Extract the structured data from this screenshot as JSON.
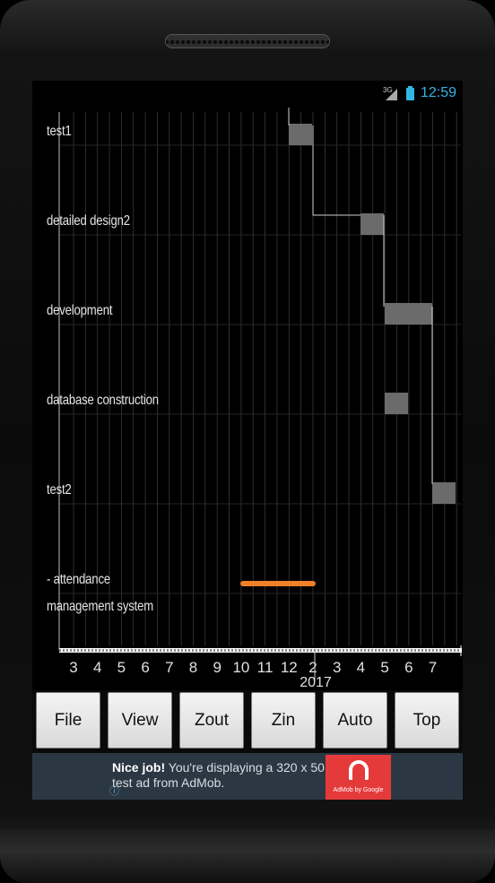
{
  "status_bar": {
    "signal_label": "3G",
    "time": "12:59"
  },
  "gantt": {
    "tasks": [
      {
        "label": "test1"
      },
      {
        "label": "detailed design2"
      },
      {
        "label": "development"
      },
      {
        "label": "database construction"
      },
      {
        "label": "test2"
      },
      {
        "label": "- attendance management system"
      }
    ],
    "months": [
      "3",
      "4",
      "5",
      "6",
      "7",
      "8",
      "9",
      "10",
      "11",
      "12",
      "2",
      "3",
      "4",
      "5",
      "6",
      "7"
    ],
    "year_label": "2017",
    "colors": {
      "task_bar": "#6b6b6b",
      "summary_bar": "#f07f28",
      "grid": "#3a3a3a",
      "dependency_line": "#cfcfcf"
    }
  },
  "toolbar": {
    "buttons": [
      {
        "label": "File"
      },
      {
        "label": "View"
      },
      {
        "label": "Zout"
      },
      {
        "label": "Zin"
      },
      {
        "label": "Auto"
      },
      {
        "label": "Top"
      }
    ]
  },
  "ad": {
    "headline": "Nice job!",
    "body": "You're displaying a 320 x 50 test ad from AdMob.",
    "logo_text": "AdMob by Google"
  }
}
